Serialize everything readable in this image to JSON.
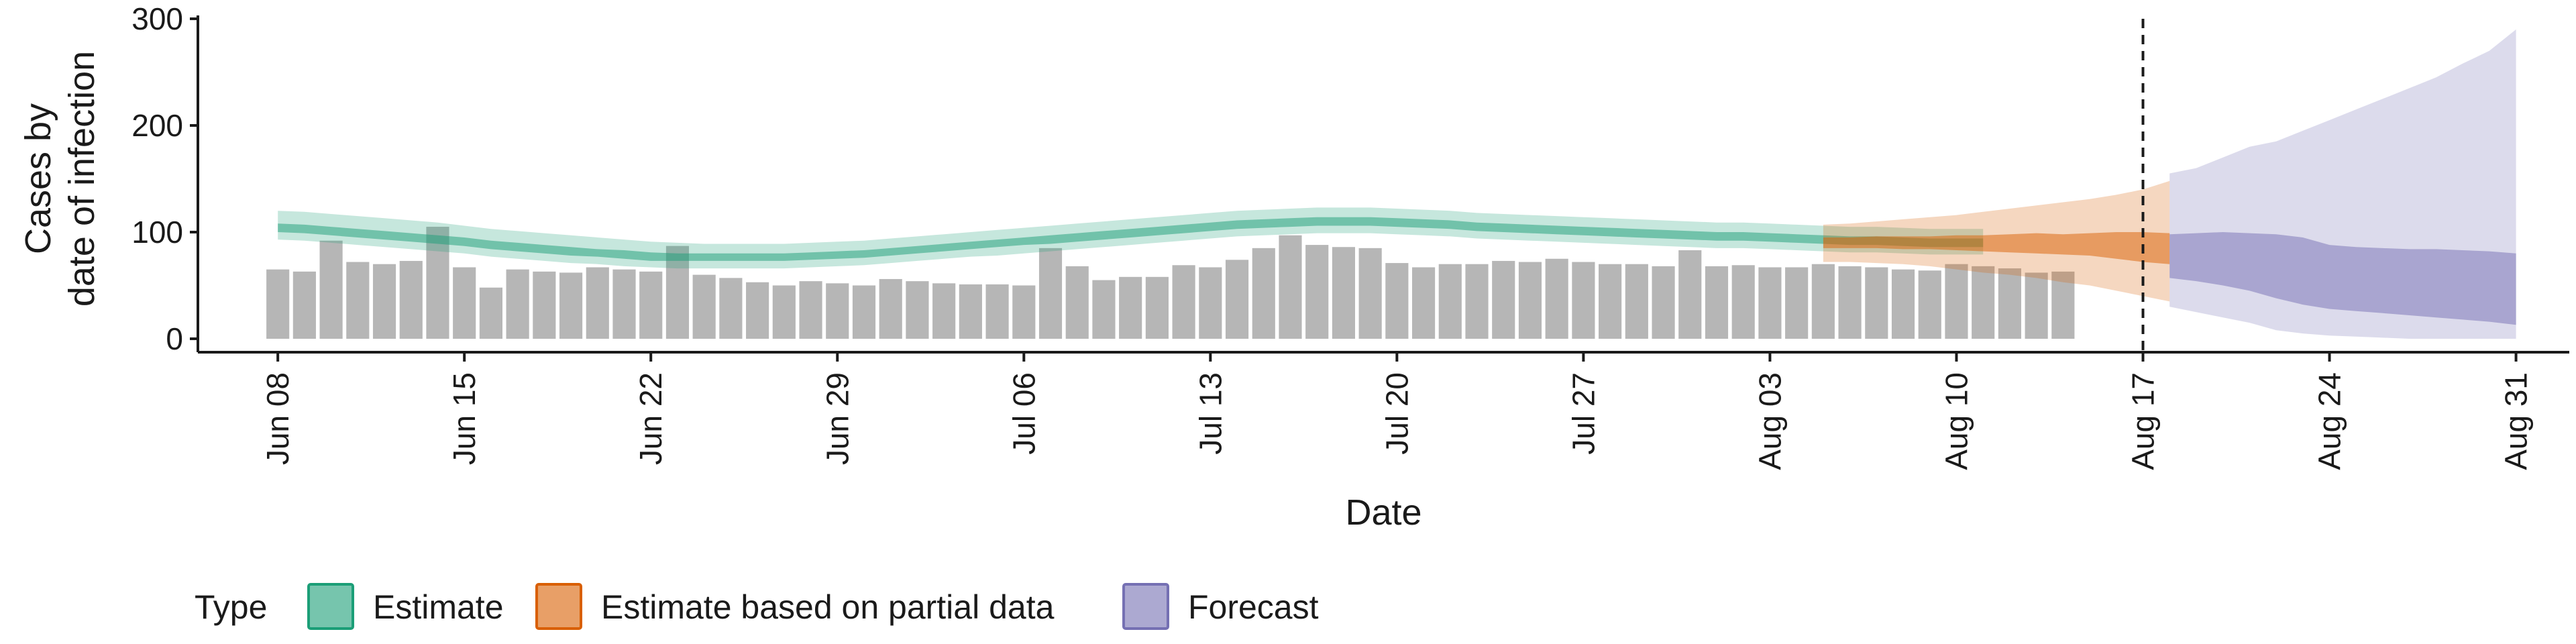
{
  "chart_data": {
    "type": "bar",
    "xlabel": "Date",
    "ylabel": [
      "Cases by",
      "date of infection"
    ],
    "ylim": [
      0,
      300
    ],
    "y_ticks": [
      0,
      100,
      200,
      300
    ],
    "x_domain": [
      "2020-06-05",
      "2020-09-02"
    ],
    "x_ticks": [
      {
        "date": "2020-06-08",
        "label": "Jun 08"
      },
      {
        "date": "2020-06-15",
        "label": "Jun 15"
      },
      {
        "date": "2020-06-22",
        "label": "Jun 22"
      },
      {
        "date": "2020-06-29",
        "label": "Jun 29"
      },
      {
        "date": "2020-07-06",
        "label": "Jul 06"
      },
      {
        "date": "2020-07-13",
        "label": "Jul 13"
      },
      {
        "date": "2020-07-20",
        "label": "Jul 20"
      },
      {
        "date": "2020-07-27",
        "label": "Jul 27"
      },
      {
        "date": "2020-08-03",
        "label": "Aug 03"
      },
      {
        "date": "2020-08-10",
        "label": "Aug 10"
      },
      {
        "date": "2020-08-17",
        "label": "Aug 17"
      },
      {
        "date": "2020-08-24",
        "label": "Aug 24"
      },
      {
        "date": "2020-08-31",
        "label": "Aug 31"
      }
    ],
    "reported_cases": {
      "start_date": "2020-06-08",
      "values": [
        65,
        63,
        92,
        72,
        70,
        73,
        105,
        67,
        48,
        65,
        63,
        62,
        67,
        65,
        63,
        87,
        60,
        57,
        53,
        50,
        54,
        52,
        50,
        56,
        54,
        52,
        51,
        51,
        50,
        85,
        68,
        55,
        58,
        58,
        69,
        67,
        74,
        85,
        97,
        88,
        86,
        85,
        71,
        67,
        70,
        70,
        73,
        72,
        75,
        72,
        70,
        70,
        68,
        83,
        68,
        69,
        67,
        67,
        70,
        68,
        67,
        65,
        64,
        70,
        68,
        66,
        62,
        63
      ]
    },
    "series": [
      {
        "name": "Estimate",
        "color": "#1b9e77",
        "start_date": "2020-06-08",
        "median": [
          104,
          103,
          101,
          99,
          97,
          95,
          93,
          91,
          88,
          86,
          84,
          82,
          80,
          79,
          77,
          76,
          76,
          76,
          76,
          76,
          77,
          78,
          79,
          81,
          83,
          85,
          87,
          89,
          91,
          93,
          95,
          97,
          99,
          101,
          103,
          105,
          107,
          108,
          109,
          110,
          110,
          110,
          109,
          108,
          107,
          105,
          104,
          103,
          102,
          101,
          100,
          99,
          98,
          97,
          96,
          96,
          95,
          94,
          93,
          92,
          92,
          91,
          90,
          90,
          90
        ],
        "lower50": [
          100,
          99,
          97,
          95,
          93,
          91,
          89,
          87,
          84,
          82,
          80,
          78,
          77,
          75,
          73,
          73,
          73,
          73,
          73,
          73,
          74,
          75,
          76,
          78,
          80,
          82,
          84,
          86,
          88,
          89,
          91,
          93,
          95,
          97,
          99,
          101,
          103,
          104,
          105,
          106,
          106,
          106,
          105,
          104,
          103,
          101,
          100,
          99,
          98,
          97,
          96,
          95,
          94,
          93,
          92,
          92,
          91,
          90,
          89,
          88,
          88,
          87,
          86,
          86,
          86
        ],
        "upper50": [
          108,
          107,
          105,
          103,
          101,
          99,
          97,
          95,
          92,
          90,
          88,
          86,
          84,
          83,
          81,
          80,
          80,
          80,
          80,
          80,
          81,
          82,
          83,
          85,
          87,
          89,
          91,
          93,
          95,
          97,
          99,
          101,
          103,
          105,
          107,
          109,
          111,
          112,
          113,
          114,
          114,
          114,
          113,
          112,
          111,
          109,
          108,
          107,
          106,
          105,
          104,
          103,
          102,
          101,
          100,
          100,
          99,
          98,
          97,
          96,
          96,
          95,
          94,
          94,
          94
        ],
        "lower90": [
          93,
          92,
          90,
          88,
          86,
          84,
          82,
          80,
          77,
          75,
          73,
          71,
          70,
          68,
          67,
          66,
          66,
          66,
          66,
          66,
          67,
          68,
          69,
          71,
          73,
          75,
          77,
          78,
          80,
          82,
          84,
          86,
          88,
          90,
          92,
          94,
          96,
          97,
          98,
          99,
          99,
          99,
          98,
          97,
          96,
          94,
          93,
          92,
          91,
          90,
          89,
          88,
          87,
          86,
          85,
          85,
          84,
          83,
          82,
          81,
          81,
          80,
          79,
          79,
          79
        ],
        "upper90": [
          120,
          119,
          117,
          115,
          113,
          111,
          109,
          106,
          103,
          101,
          99,
          97,
          95,
          93,
          91,
          90,
          89,
          89,
          89,
          89,
          90,
          91,
          92,
          94,
          96,
          98,
          100,
          102,
          104,
          106,
          108,
          110,
          112,
          114,
          116,
          118,
          120,
          121,
          122,
          123,
          123,
          123,
          122,
          121,
          120,
          118,
          117,
          116,
          115,
          114,
          113,
          112,
          111,
          110,
          109,
          109,
          108,
          107,
          106,
          105,
          105,
          104,
          103,
          103,
          103
        ]
      },
      {
        "name": "Estimate based on partial data",
        "color": "#d95f02",
        "start_date": "2020-08-05",
        "median": [
          90,
          90,
          90,
          90,
          90,
          90,
          90,
          90,
          90,
          89,
          89,
          88,
          87,
          86
        ],
        "lower50": [
          85,
          85,
          85,
          84,
          84,
          83,
          82,
          81,
          80,
          79,
          78,
          75,
          72,
          70
        ],
        "upper50": [
          95,
          95,
          96,
          96,
          96,
          97,
          97,
          98,
          99,
          98,
          99,
          100,
          100,
          99
        ],
        "lower90": [
          72,
          72,
          71,
          70,
          68,
          65,
          62,
          60,
          57,
          53,
          50,
          45,
          40,
          35
        ],
        "upper90": [
          107,
          108,
          110,
          112,
          114,
          116,
          119,
          122,
          125,
          128,
          131,
          135,
          140,
          148
        ]
      },
      {
        "name": "Forecast",
        "color": "#7570b3",
        "start_date": "2020-08-18",
        "median": [
          80,
          79,
          78,
          76,
          73,
          70,
          68,
          66,
          65,
          64,
          64,
          63,
          63,
          63
        ],
        "lower50": [
          57,
          54,
          50,
          45,
          38,
          32,
          28,
          26,
          24,
          22,
          20,
          18,
          16,
          13
        ],
        "upper50": [
          98,
          99,
          100,
          99,
          98,
          95,
          88,
          86,
          85,
          84,
          84,
          83,
          82,
          80
        ],
        "lower90": [
          30,
          25,
          20,
          15,
          8,
          5,
          3,
          2,
          1,
          0,
          0,
          0,
          0,
          0
        ],
        "upper90": [
          155,
          160,
          170,
          180,
          185,
          195,
          205,
          215,
          225,
          235,
          245,
          258,
          270,
          290
        ]
      }
    ],
    "vline_date": "2020-08-17",
    "legend": {
      "title": "Type",
      "position": "bottom",
      "items": [
        "Estimate",
        "Estimate based on partial data",
        "Forecast"
      ]
    },
    "grid": false
  }
}
